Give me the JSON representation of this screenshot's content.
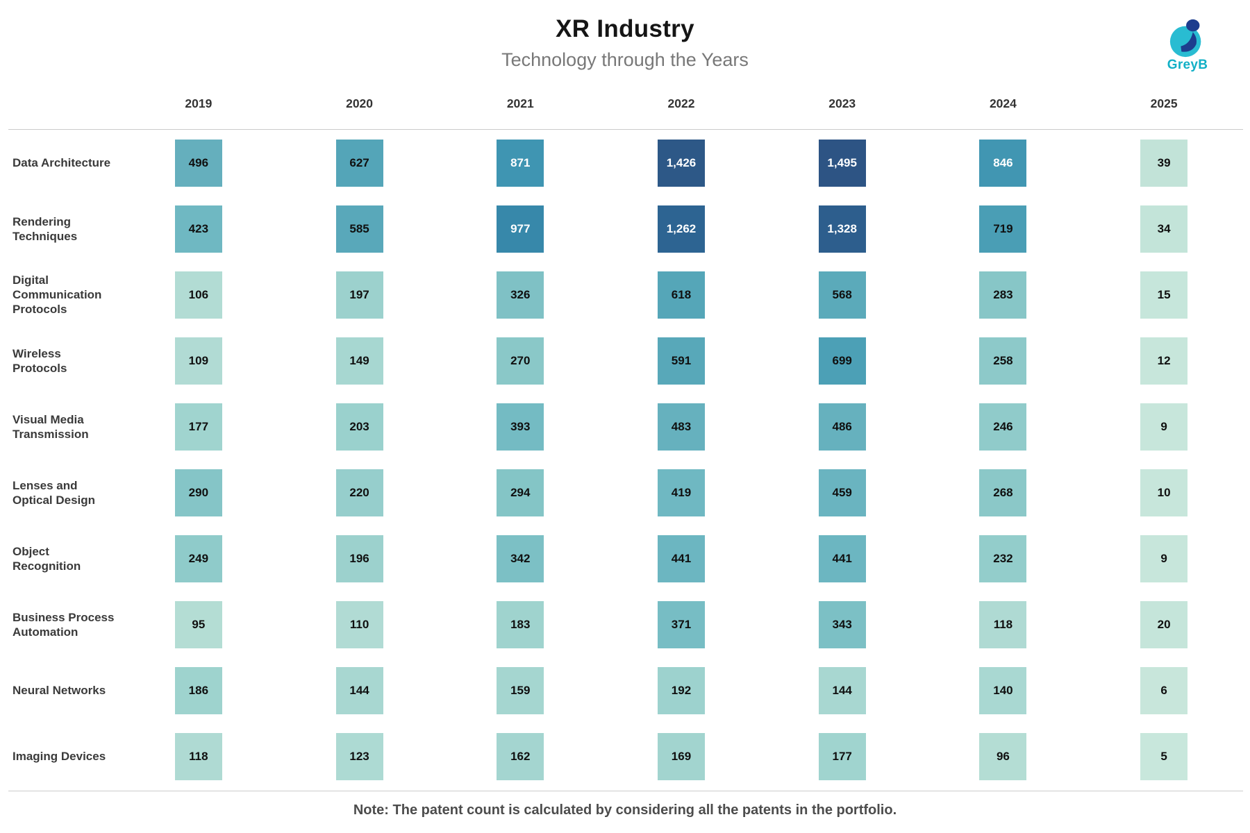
{
  "header": {
    "title": "XR Industry",
    "subtitle": "Technology through the Years",
    "logo": {
      "text": "GreyB",
      "teal": "#29bcd2",
      "navy": "#1d3d8e"
    }
  },
  "chart_data": {
    "type": "heatmap",
    "title": "XR Industry",
    "subtitle": "Technology through the Years",
    "x": [
      "2019",
      "2020",
      "2021",
      "2022",
      "2023",
      "2024",
      "2025"
    ],
    "rows": [
      {
        "label": "Data Architecture",
        "lines": [
          "Data Architecture"
        ],
        "values": [
          496,
          627,
          871,
          1426,
          1495,
          846,
          39
        ]
      },
      {
        "label": "Rendering Techniques",
        "lines": [
          "Rendering",
          "Techniques"
        ],
        "values": [
          423,
          585,
          977,
          1262,
          1328,
          719,
          34
        ]
      },
      {
        "label": "Digital Communication Protocols",
        "lines": [
          "Digital",
          "Communication",
          "Protocols"
        ],
        "values": [
          106,
          197,
          326,
          618,
          568,
          283,
          15
        ]
      },
      {
        "label": "Wireless Protocols",
        "lines": [
          "Wireless",
          "Protocols"
        ],
        "values": [
          109,
          149,
          270,
          591,
          699,
          258,
          12
        ]
      },
      {
        "label": "Visual Media Transmission",
        "lines": [
          "Visual Media",
          "Transmission"
        ],
        "values": [
          177,
          203,
          393,
          483,
          486,
          246,
          9
        ]
      },
      {
        "label": "Lenses and Optical Design",
        "lines": [
          "Lenses and",
          "Optical Design"
        ],
        "values": [
          290,
          220,
          294,
          419,
          459,
          268,
          10
        ]
      },
      {
        "label": "Object Recognition",
        "lines": [
          "Object",
          "Recognition"
        ],
        "values": [
          249,
          196,
          342,
          441,
          441,
          232,
          9
        ]
      },
      {
        "label": "Business Process Automation",
        "lines": [
          "Business Process",
          "Automation"
        ],
        "values": [
          95,
          110,
          183,
          371,
          343,
          118,
          20
        ]
      },
      {
        "label": "Neural Networks",
        "lines": [
          "Neural Networks"
        ],
        "values": [
          186,
          144,
          159,
          192,
          144,
          140,
          6
        ]
      },
      {
        "label": "Imaging Devices",
        "lines": [
          "Imaging Devices"
        ],
        "values": [
          118,
          123,
          162,
          169,
          177,
          96,
          5
        ]
      }
    ],
    "value_range": [
      5,
      1495
    ],
    "grid": "off",
    "legend": "none",
    "color_scale": {
      "stops": [
        [
          0,
          "#c9e7dc"
        ],
        [
          50,
          "#c0e2d7"
        ],
        [
          120,
          "#aedad3"
        ],
        [
          200,
          "#9bd1cd"
        ],
        [
          300,
          "#83c4c6"
        ],
        [
          420,
          "#6fb8c2"
        ],
        [
          500,
          "#64afbd"
        ],
        [
          650,
          "#51a3b7"
        ],
        [
          750,
          "#479cb4"
        ],
        [
          900,
          "#3d93b1"
        ],
        [
          1000,
          "#3585a8"
        ],
        [
          1150,
          "#2e6f9a"
        ],
        [
          1350,
          "#2d5c8b"
        ],
        [
          1500,
          "#2d5484"
        ]
      ],
      "white_text_min": 800,
      "dark_text_color": "#101010",
      "light_text_color": "#ffffff"
    }
  },
  "footer": {
    "note": "Note: The patent count is calculated by considering all the patents in the portfolio."
  }
}
